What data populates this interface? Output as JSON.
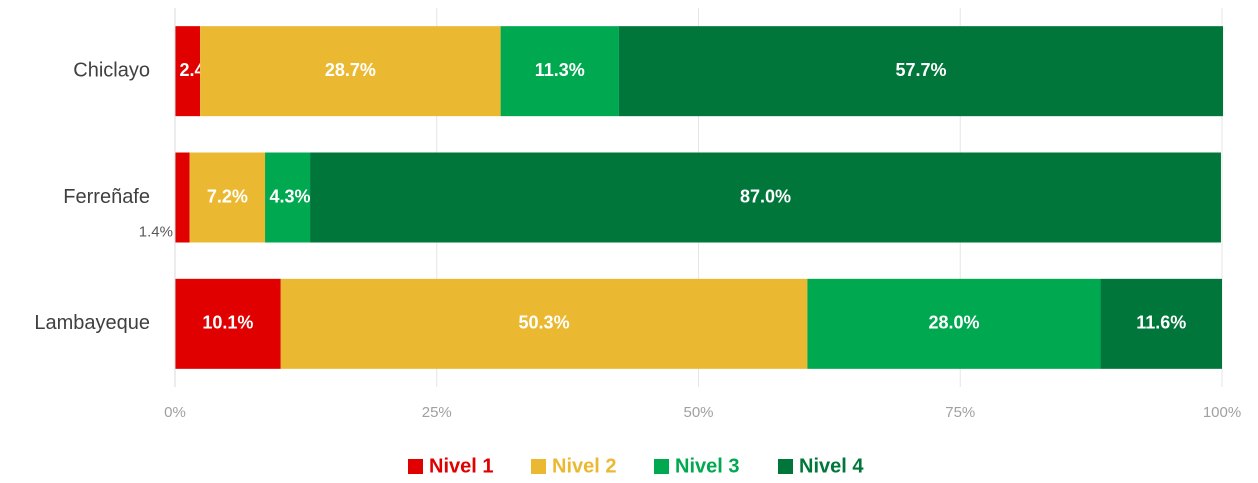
{
  "chart_data": {
    "type": "stacked_bar_horizontal",
    "categories": [
      "Chiclayo",
      "Ferreñafe",
      "Lambayeque"
    ],
    "series": [
      {
        "name": "Nivel 1",
        "color": "#e00000",
        "values": [
          2.4,
          1.4,
          10.1
        ],
        "value_labels": [
          "2.4%",
          "1.4%",
          "10.1%"
        ]
      },
      {
        "name": "Nivel 2",
        "color": "#ebb931",
        "values": [
          28.7,
          7.2,
          50.3
        ],
        "value_labels": [
          "28.7%",
          "7.2%",
          "50.3%"
        ]
      },
      {
        "name": "Nivel 3",
        "color": "#00a84f",
        "values": [
          11.3,
          4.3,
          28.0
        ],
        "value_labels": [
          "11.3%",
          "4.3%",
          "28.0%"
        ]
      },
      {
        "name": "Nivel 4",
        "color": "#00763a",
        "values": [
          57.7,
          87.0,
          11.6
        ],
        "value_labels": [
          "57.7%",
          "87.0%",
          "11.6%"
        ]
      }
    ],
    "xlim": [
      0,
      100
    ],
    "xticks": [
      {
        "value": 0,
        "label": "0%"
      },
      {
        "value": 25,
        "label": "25%"
      },
      {
        "value": 50,
        "label": "50%"
      },
      {
        "value": 75,
        "label": "75%"
      },
      {
        "value": 100,
        "label": "100%"
      }
    ],
    "grid": true,
    "legend": "bottom"
  }
}
